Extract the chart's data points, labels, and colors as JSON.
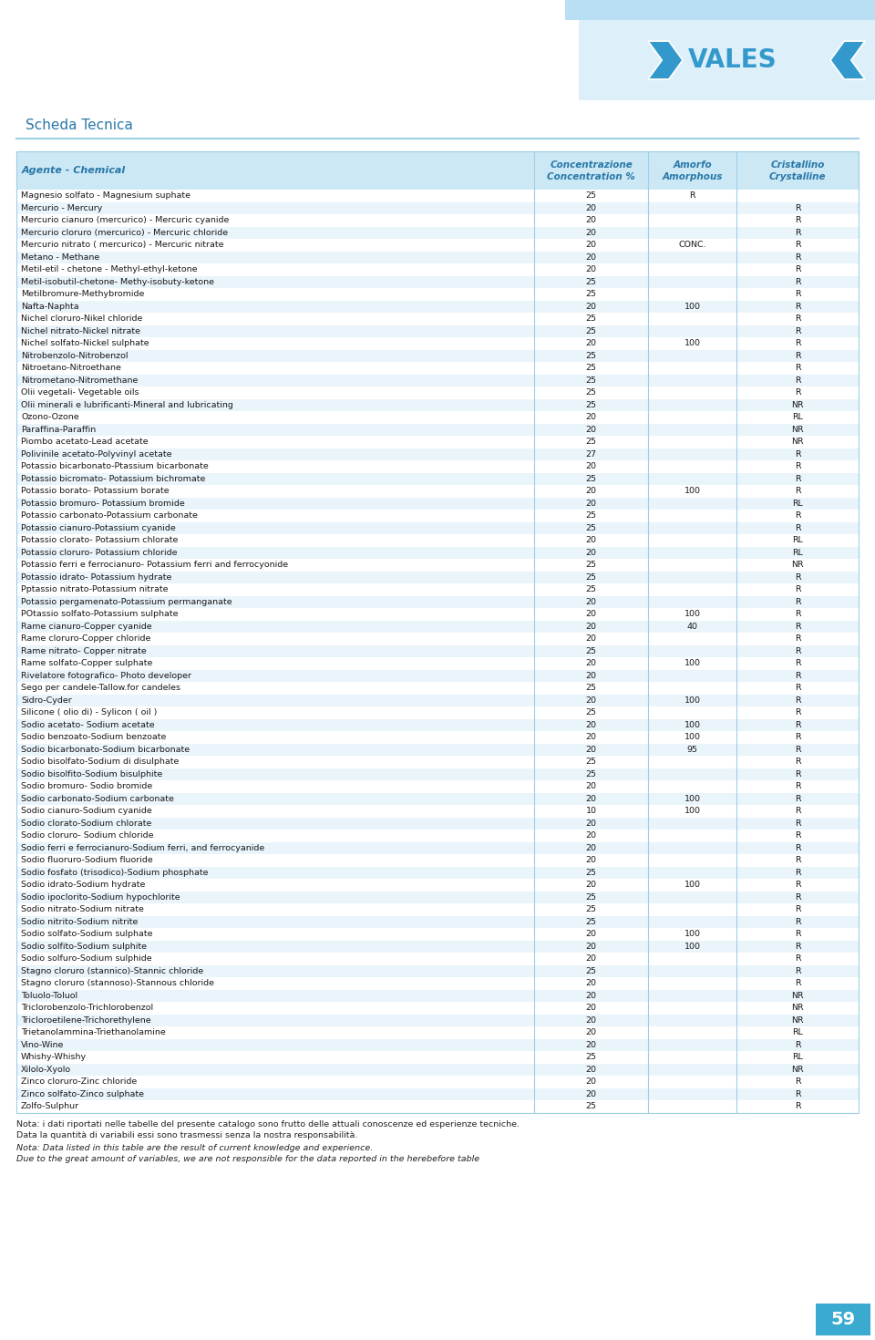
{
  "title": "Scheda Tecnica",
  "rows": [
    [
      "Magnesio solfato - Magnesium suphate",
      "25",
      "R",
      ""
    ],
    [
      "Mercurio - Mercury",
      "20",
      "",
      "R"
    ],
    [
      "Mercurio cianuro (mercurico) - Mercuric cyanide",
      "20",
      "",
      "R"
    ],
    [
      "Mercurio cloruro (mercurico) - Mercuric chloride",
      "20",
      "",
      "R"
    ],
    [
      "Mercurio nitrato ( mercurico) - Mercuric nitrate",
      "20",
      "CONC.",
      "R"
    ],
    [
      "Metano - Methane",
      "20",
      "",
      "R"
    ],
    [
      "Metil-etil - chetone - Methyl-ethyl-ketone",
      "20",
      "",
      "R"
    ],
    [
      "Metil-isobutil-chetone- Methy-isobuty-ketone",
      "25",
      "",
      "R"
    ],
    [
      "Metilbromure-Methybromide",
      "25",
      "",
      "R"
    ],
    [
      "Nafta-Naphta",
      "20",
      "100",
      "R"
    ],
    [
      "Nichel cloruro-Nikel chloride",
      "25",
      "",
      "R"
    ],
    [
      "Nichel nitrato-Nickel nitrate",
      "25",
      "",
      "R"
    ],
    [
      "Nichel solfato-Nickel sulphate",
      "20",
      "100",
      "R"
    ],
    [
      "Nitrobenzolo-Nitrobenzol",
      "25",
      "",
      "R"
    ],
    [
      "Nitroetano-Nitroethane",
      "25",
      "",
      "R"
    ],
    [
      "Nitrometano-Nitromethane",
      "25",
      "",
      "R"
    ],
    [
      "Olii vegetali- Vegetable oils",
      "25",
      "",
      "R"
    ],
    [
      "Olii minerali e lubrificanti-Mineral and lubricating",
      "25",
      "",
      "NR"
    ],
    [
      "Ozono-Ozone",
      "20",
      "",
      "RL"
    ],
    [
      "Paraffina-Paraffin",
      "20",
      "",
      "NR"
    ],
    [
      "Piombo acetato-Lead acetate",
      "25",
      "",
      "NR"
    ],
    [
      "Polivinile acetato-Polyvinyl acetate",
      "27",
      "",
      "R"
    ],
    [
      "Potassio bicarbonato-Ptassium bicarbonate",
      "20",
      "",
      "R"
    ],
    [
      "Potassio bicromato- Potassium bichromate",
      "25",
      "",
      "R"
    ],
    [
      "Potassio borato- Potassium borate",
      "20",
      "100",
      "R"
    ],
    [
      "Potassio bromuro- Potassium bromide",
      "20",
      "",
      "RL"
    ],
    [
      "Potassio carbonato-Potassium carbonate",
      "25",
      "",
      "R"
    ],
    [
      "Potassio cianuro-Potassium cyanide",
      "25",
      "",
      "R"
    ],
    [
      "Potassio clorato- Potassium chlorate",
      "20",
      "",
      "RL"
    ],
    [
      "Potassio cloruro- Potassium chloride",
      "20",
      "",
      "RL"
    ],
    [
      "Potassio ferri e ferrocianuro- Potassium ferri and ferrocyonide",
      "25",
      "",
      "NR"
    ],
    [
      "Potassio idrato- Potassium hydrate",
      "25",
      "",
      "R"
    ],
    [
      "Pptassio nitrato-Potassium nitrate",
      "25",
      "",
      "R"
    ],
    [
      "Potassio pergamenato-Potassium permanganate",
      "20",
      "",
      "R"
    ],
    [
      "POtassio solfato-Potassium sulphate",
      "20",
      "100",
      "R"
    ],
    [
      "Rame cianuro-Copper cyanide",
      "20",
      "40",
      "R"
    ],
    [
      "Rame cloruro-Copper chloride",
      "20",
      "",
      "R"
    ],
    [
      "Rame nitrato- Copper nitrate",
      "25",
      "",
      "R"
    ],
    [
      "Rame solfato-Copper sulphate",
      "20",
      "100",
      "R"
    ],
    [
      "Rivelatore fotografico- Photo developer",
      "20",
      "",
      "R"
    ],
    [
      "Sego per candele-Tallow.for candeles",
      "25",
      "",
      "R"
    ],
    [
      "Sidro-Cyder",
      "20",
      "100",
      "R"
    ],
    [
      "Silicone ( olio di) - Sylicon ( oil )",
      "25",
      "",
      "R"
    ],
    [
      "Sodio acetato- Sodium acetate",
      "20",
      "100",
      "R"
    ],
    [
      "Sodio benzoato-Sodium benzoate",
      "20",
      "100",
      "R"
    ],
    [
      "Sodio bicarbonato-Sodium bicarbonate",
      "20",
      "95",
      "R"
    ],
    [
      "Sodio bisolfato-Sodium di disulphate",
      "25",
      "",
      "R"
    ],
    [
      "Sodio bisolfito-Sodium bisulphite",
      "25",
      "",
      "R"
    ],
    [
      "Sodio bromuro- Sodio bromide",
      "20",
      "",
      "R"
    ],
    [
      "Sodio carbonato-Sodium carbonate",
      "20",
      "100",
      "R"
    ],
    [
      "Sodio cianuro-Sodium cyanide",
      "10",
      "100",
      "R"
    ],
    [
      "Sodio clorato-Sodium chlorate",
      "20",
      "",
      "R"
    ],
    [
      "Sodio cloruro- Sodium chloride",
      "20",
      "",
      "R"
    ],
    [
      "Sodio ferri e ferrocianuro-Sodium ferri, and ferrocyanide",
      "20",
      "",
      "R"
    ],
    [
      "Sodio fluoruro-Sodium fluoride",
      "20",
      "",
      "R"
    ],
    [
      "Sodio fosfato (trisodico)-Sodium phosphate",
      "25",
      "",
      "R"
    ],
    [
      "Sodio idrato-Sodium hydrate",
      "20",
      "100",
      "R"
    ],
    [
      "Sodio ipoclorito-Sodium hypochlorite",
      "25",
      "",
      "R"
    ],
    [
      "Sodio nitrato-Sodium nitrate",
      "25",
      "",
      "R"
    ],
    [
      "Sodio nitrito-Sodium nitrite",
      "25",
      "",
      "R"
    ],
    [
      "Sodio solfato-Sodium sulphate",
      "20",
      "100",
      "R"
    ],
    [
      "Sodio solfito-Sodium sulphite",
      "20",
      "100",
      "R"
    ],
    [
      "Sodio solfuro-Sodium sulphide",
      "20",
      "",
      "R"
    ],
    [
      "Stagno cloruro (stannico)-Stannic chloride",
      "25",
      "",
      "R"
    ],
    [
      "Stagno cloruro (stannoso)-Stannous chloride",
      "20",
      "",
      "R"
    ],
    [
      "Toluolo-Toluol",
      "20",
      "",
      "NR"
    ],
    [
      "Triclorobenzolo-Trichlorobenzol",
      "20",
      "",
      "NR"
    ],
    [
      "Tricloroetilene-Trichorethylene",
      "20",
      "",
      "NR"
    ],
    [
      "Trietanolammina-Triethanolamine",
      "20",
      "",
      "RL"
    ],
    [
      "Vino-Wine",
      "20",
      "",
      "R"
    ],
    [
      "Whishy-Whishy",
      "25",
      "",
      "RL"
    ],
    [
      "Xilolo-Xyolo",
      "20",
      "",
      "NR"
    ],
    [
      "Zinco cloruro-Zinc chloride",
      "20",
      "",
      "R"
    ],
    [
      "Zinco solfato-Zinco sulphate",
      "20",
      "",
      "R"
    ],
    [
      "Zolfo-Sulphur",
      "25",
      "",
      "R"
    ]
  ],
  "footer_lines": [
    [
      "Nota: i dati riportati nelle tabelle del presente catalogo sono frutto delle attuali conoscenze ed esperienze tecniche.",
      false
    ],
    [
      "Data la quantità di variabili essi sono trasmessi senza la nostra responsabilità.",
      false
    ],
    [
      "Nota: Data listed in this table are the result of current knowledge and experience.",
      true
    ],
    [
      "Due to the great amount of variables, we are not responsible for the data reported in the herebefore table",
      true
    ]
  ],
  "page_number": "59",
  "header_bg": "#cde8f5",
  "row_bg_odd": "#ffffff",
  "row_bg_even": "#eaf4fb",
  "header_text_color": "#2878a8",
  "text_color": "#1a1a1a",
  "border_color": "#9ecfe6",
  "title_color": "#2878a8",
  "logo_blue": "#3399cc",
  "logo_bg": "#b8dff4",
  "top_strip_color": "#b8dff4",
  "footer_color": "#222222",
  "page_bg_color": "#3aaad0"
}
